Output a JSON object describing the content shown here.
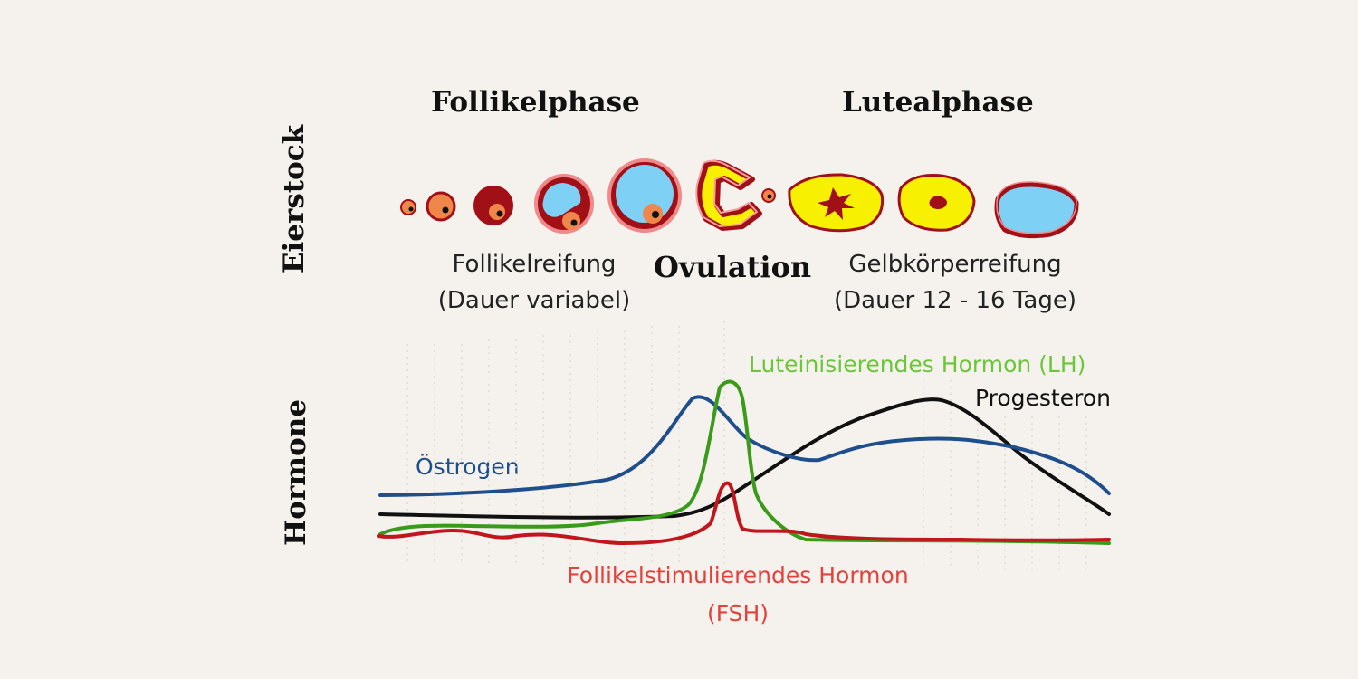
{
  "phases": {
    "follicular": "Follikelphase",
    "luteal": "Lutealphase"
  },
  "rows": {
    "ovary": "Eierstock",
    "hormones": "Hormone"
  },
  "stages": {
    "maturation_line1": "Follikelreifung",
    "maturation_line2": "(Dauer variabel)",
    "ovulation": "Ovulation",
    "corpus_line1": "Gelbkörperreifung",
    "corpus_line2": "(Dauer 12 - 16 Tage)"
  },
  "hormones": {
    "lh": "Luteinisierendes Hormon (LH)",
    "progesterone": "Progesteron",
    "estrogen": "Östrogen",
    "fsh_line1": "Follikelstimulierendes Hormon",
    "fsh_line2": "(FSH)"
  },
  "colors": {
    "background": "#f5f2ee",
    "estrogen": "#1f4e8c",
    "lh": "#3a9a1a",
    "lh_label": "#6cc53a",
    "progesterone": "#111111",
    "fsh": "#c0161c",
    "fsh_label": "#e2413c",
    "follicle_dark": "#a10f17",
    "follicle_light": "#7fd0f5",
    "egg_orange": "#f0874a",
    "corpus_yellow": "#f7f000"
  },
  "icons": [
    "follicle-icon",
    "corpus-luteum-icon",
    "corpus-albicans-icon",
    "ovulated-egg-icon"
  ]
}
